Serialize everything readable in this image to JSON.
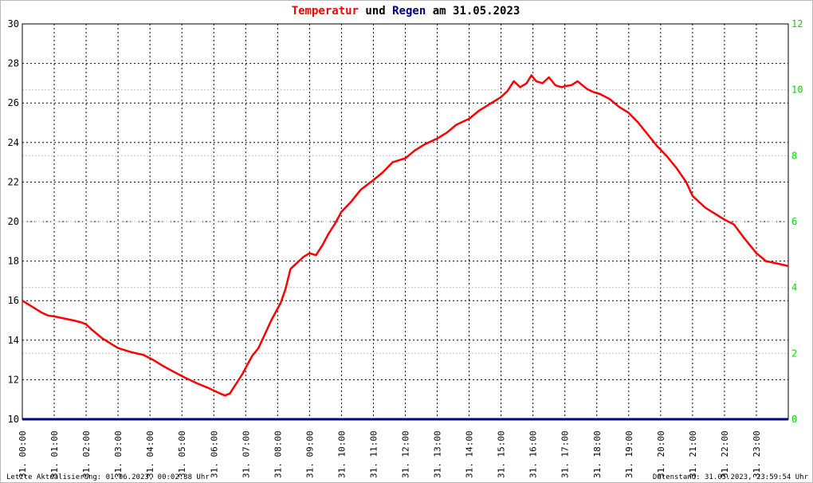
{
  "chart_data": {
    "type": "line",
    "title_parts": [
      {
        "text": "Temperatur",
        "color": "#ff0000"
      },
      {
        "text": " und ",
        "color": "#000000"
      },
      {
        "text": "Regen",
        "color": "#000080"
      },
      {
        "text": " am 31.05.2023",
        "color": "#000000"
      }
    ],
    "x_tick_labels": [
      "31. 00:00",
      "31. 01:00",
      "31. 02:00",
      "31. 03:00",
      "31. 04:00",
      "31. 05:00",
      "31. 06:00",
      "31. 07:00",
      "31. 08:00",
      "31. 09:00",
      "31. 10:00",
      "31. 11:00",
      "31. 12:00",
      "31. 13:00",
      "31. 14:00",
      "31. 15:00",
      "31. 16:00",
      "31. 17:00",
      "31. 18:00",
      "31. 19:00",
      "31. 20:00",
      "31. 21:00",
      "31. 22:00",
      "31. 23:00"
    ],
    "x_range_hours": [
      0,
      24
    ],
    "y_left_range": [
      10,
      30
    ],
    "y_left_ticks": [
      "10",
      "12",
      "14",
      "16",
      "18",
      "20",
      "22",
      "24",
      "26",
      "28",
      "30"
    ],
    "y_right_range": [
      0,
      12
    ],
    "y_right_ticks": [
      "0",
      "2",
      "4",
      "6",
      "8",
      "10",
      "12"
    ],
    "y_right_tick_values": [
      0,
      2,
      4,
      6,
      8,
      10,
      12
    ],
    "grid": true,
    "series": [
      {
        "name": "Temperatur",
        "color": "#ff0000",
        "axis": "left",
        "x_hours": [
          0,
          0.3,
          0.6,
          0.8,
          1.0,
          1.3,
          1.6,
          1.85,
          2.0,
          2.2,
          2.5,
          2.8,
          3.0,
          3.4,
          3.8,
          4.1,
          4.4,
          4.8,
          5.1,
          5.5,
          5.8,
          6.0,
          6.2,
          6.35,
          6.5,
          6.7,
          6.9,
          7.0,
          7.2,
          7.4,
          7.6,
          7.8,
          8.0,
          8.1,
          8.25,
          8.4,
          8.6,
          8.8,
          9.0,
          9.2,
          9.4,
          9.6,
          9.8,
          10.0,
          10.3,
          10.6,
          11.0,
          11.3,
          11.6,
          12.0,
          12.3,
          12.6,
          13.0,
          13.3,
          13.6,
          14.0,
          14.3,
          14.6,
          15.0,
          15.2,
          15.4,
          15.6,
          15.8,
          15.95,
          16.1,
          16.3,
          16.5,
          16.7,
          16.9,
          17.0,
          17.2,
          17.4,
          17.55,
          17.7,
          17.9,
          18.1,
          18.4,
          18.7,
          19.0,
          19.3,
          19.6,
          19.9,
          20.2,
          20.5,
          20.8,
          21.0,
          21.2,
          21.4,
          21.7,
          22.0,
          22.3,
          22.6,
          22.8,
          23.0,
          23.3,
          23.6,
          24.0
        ],
        "y": [
          16.0,
          15.7,
          15.4,
          15.25,
          15.2,
          15.1,
          15.0,
          14.9,
          14.8,
          14.5,
          14.1,
          13.8,
          13.6,
          13.4,
          13.25,
          13.0,
          12.7,
          12.35,
          12.1,
          11.8,
          11.6,
          11.45,
          11.3,
          11.2,
          11.3,
          11.8,
          12.3,
          12.6,
          13.2,
          13.6,
          14.3,
          15.0,
          15.6,
          15.9,
          16.6,
          17.6,
          17.9,
          18.2,
          18.4,
          18.3,
          18.8,
          19.4,
          19.9,
          20.5,
          21.0,
          21.6,
          22.1,
          22.5,
          23.0,
          23.2,
          23.6,
          23.9,
          24.2,
          24.5,
          24.9,
          25.2,
          25.6,
          25.9,
          26.3,
          26.6,
          27.1,
          26.8,
          27.0,
          27.4,
          27.1,
          27.0,
          27.3,
          26.9,
          26.8,
          26.85,
          26.9,
          27.1,
          26.9,
          26.7,
          26.55,
          26.45,
          26.2,
          25.8,
          25.5,
          25.0,
          24.4,
          23.8,
          23.3,
          22.7,
          22.0,
          21.3,
          21.0,
          20.7,
          20.4,
          20.1,
          19.85,
          19.2,
          18.8,
          18.4,
          18.0,
          17.9,
          17.75
        ]
      },
      {
        "name": "Regen",
        "color": "#000080",
        "axis": "right",
        "x_hours": [
          0,
          24
        ],
        "y": [
          0,
          0
        ]
      }
    ]
  },
  "footer": {
    "left": "Letzte Aktualisierung: 01.06.2023, 00:02:38 Uhr",
    "right": "Datenstand: 31.05.2023, 23:59:54 Uhr"
  }
}
